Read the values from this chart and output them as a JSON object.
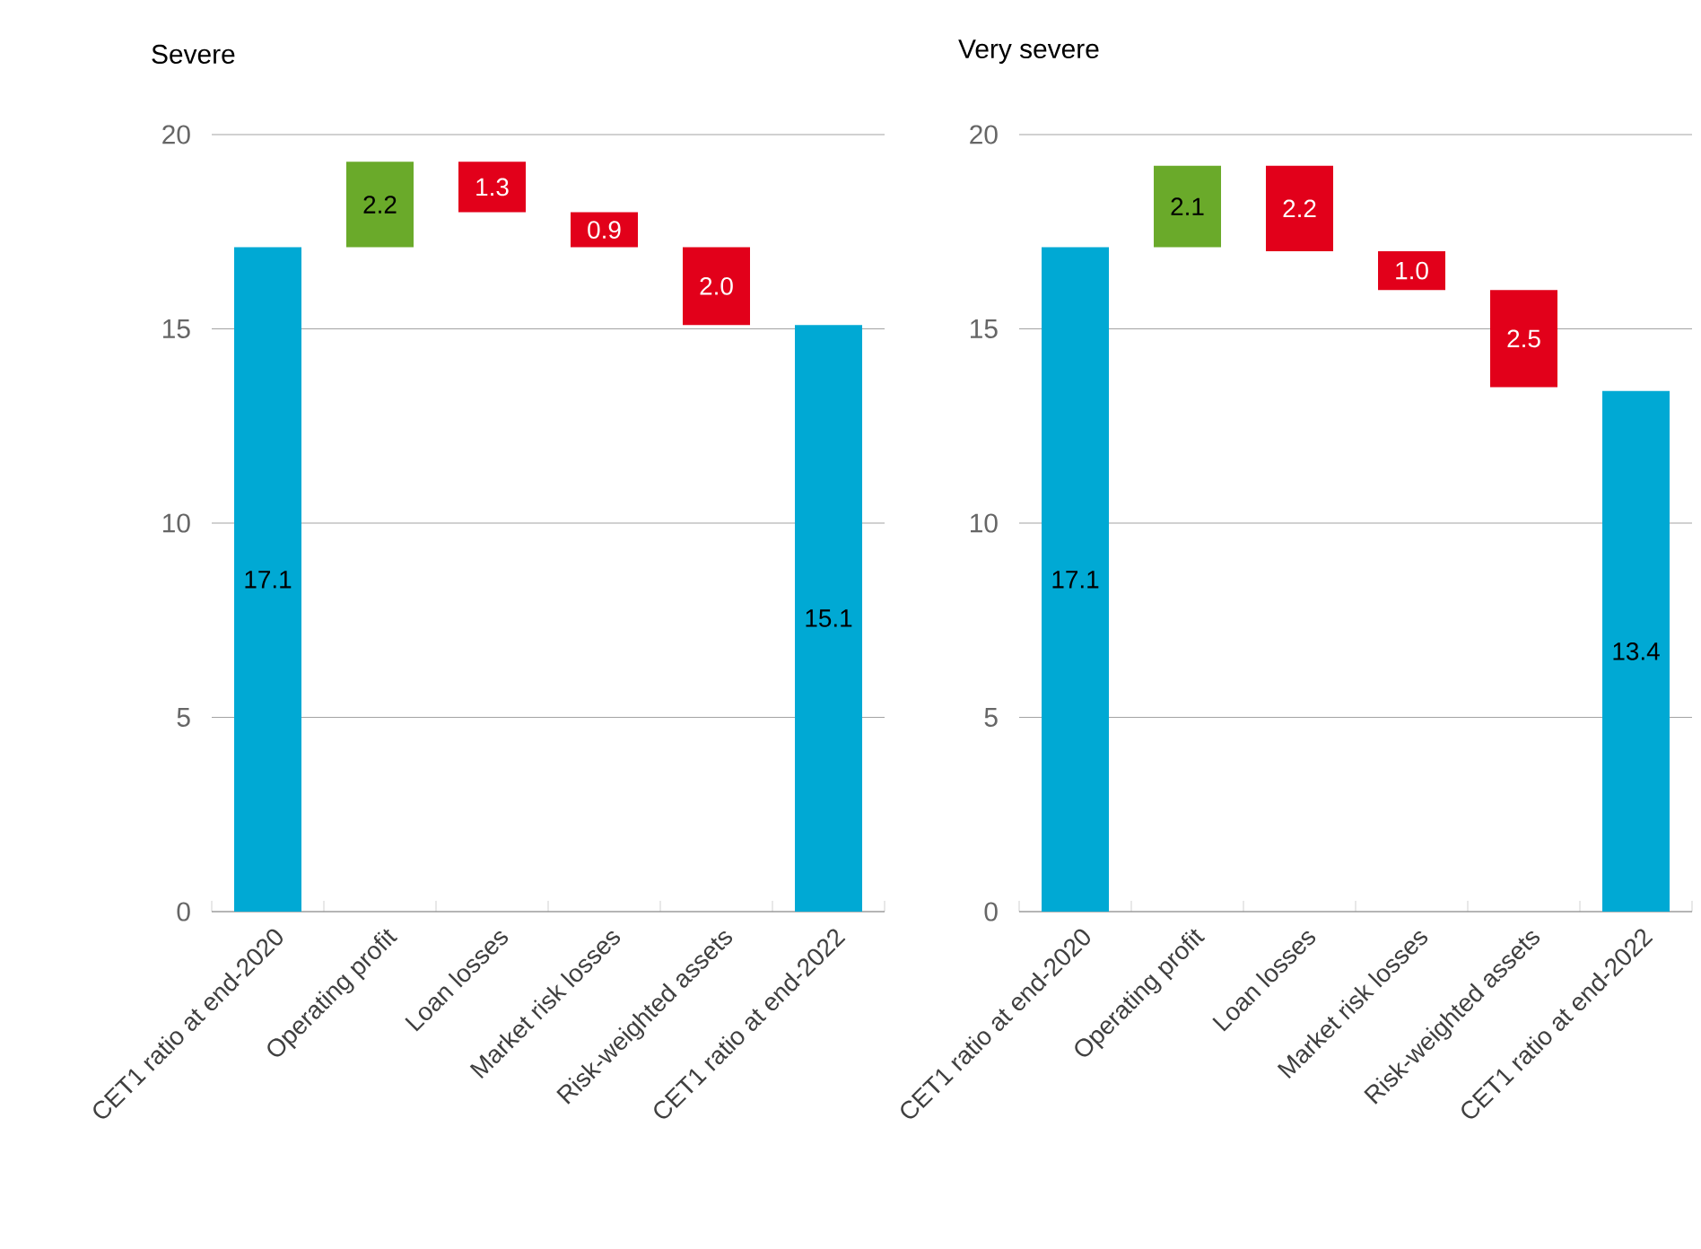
{
  "chart_data": [
    {
      "type": "bar",
      "title": "Severe",
      "categories": [
        "CET1 ratio at end-2020",
        "Operating profit",
        "Loan losses",
        "Market risk losses",
        "Risk-weighted assets",
        "CET1 ratio at end-2022"
      ],
      "values": [
        17.1,
        2.2,
        -1.3,
        -0.9,
        -2.0,
        15.1
      ],
      "base": [
        0,
        17.1,
        19.3,
        18.0,
        17.1,
        0
      ],
      "value_labels": [
        "17.1",
        "2.2",
        "1.3",
        "0.9",
        "2.0",
        "15.1"
      ],
      "colors": [
        "#00a9d4",
        "#6aaa2a",
        "#e2001a",
        "#e2001a",
        "#e2001a",
        "#00a9d4"
      ],
      "ylim": [
        0,
        20
      ],
      "yticks": [
        0,
        5,
        10,
        15,
        20
      ],
      "grid": "y"
    },
    {
      "type": "bar",
      "title": "Very severe",
      "categories": [
        "CET1 ratio at end-2020",
        "Operating profit",
        "Loan losses",
        "Market risk losses",
        "Risk-weighted assets",
        "CET1 ratio at end-2022"
      ],
      "values": [
        17.1,
        2.1,
        -2.2,
        -1.0,
        -2.5,
        13.4
      ],
      "base": [
        0,
        17.1,
        19.2,
        17.0,
        16.0,
        0
      ],
      "value_labels": [
        "17.1",
        "2.1",
        "2.2",
        "1.0",
        "2.5",
        "13.4"
      ],
      "colors": [
        "#00a9d4",
        "#6aaa2a",
        "#e2001a",
        "#e2001a",
        "#e2001a",
        "#00a9d4"
      ],
      "ylim": [
        0,
        20
      ],
      "yticks": [
        0,
        5,
        10,
        15,
        20
      ],
      "grid": "y"
    }
  ]
}
